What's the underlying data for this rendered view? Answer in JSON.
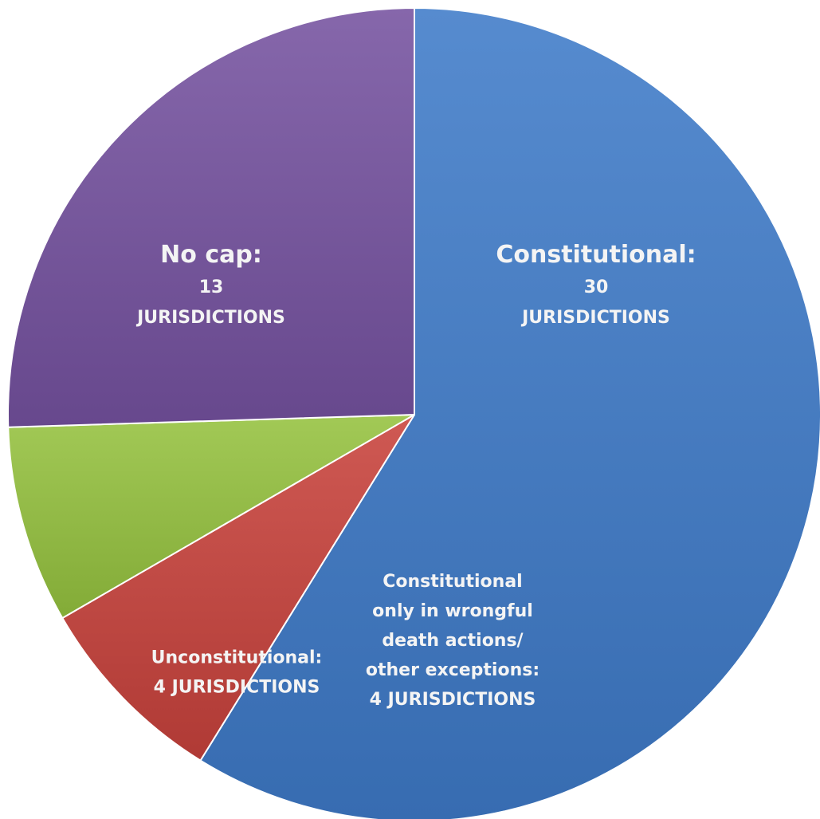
{
  "chart_data": {
    "type": "pie",
    "slices": [
      {
        "category": "Constitutional",
        "value": 30,
        "color": "#3f7bc9",
        "label_lines": [
          "Constitutional:",
          "30",
          "JURISDICTIONS"
        ]
      },
      {
        "category": "Constitutional only in wrongful death actions/ other exceptions",
        "value": 4,
        "color": "#c8423c",
        "label_lines": [
          "Constitutional",
          "only in wrongful",
          "death actions/",
          "other exceptions:",
          "4 JURISDICTIONS"
        ]
      },
      {
        "category": "Unconstitutional",
        "value": 4,
        "color": "#95c23f",
        "label_lines": [
          "Unconstitutional:",
          "4 JURISDICTIONS"
        ]
      },
      {
        "category": "No cap",
        "value": 13,
        "color": "#7552a0",
        "label_lines": [
          "No cap:",
          "13",
          "JURISDICTIONS"
        ]
      }
    ],
    "start": "12 o'clock",
    "direction": "clockwise",
    "legend": "none"
  }
}
